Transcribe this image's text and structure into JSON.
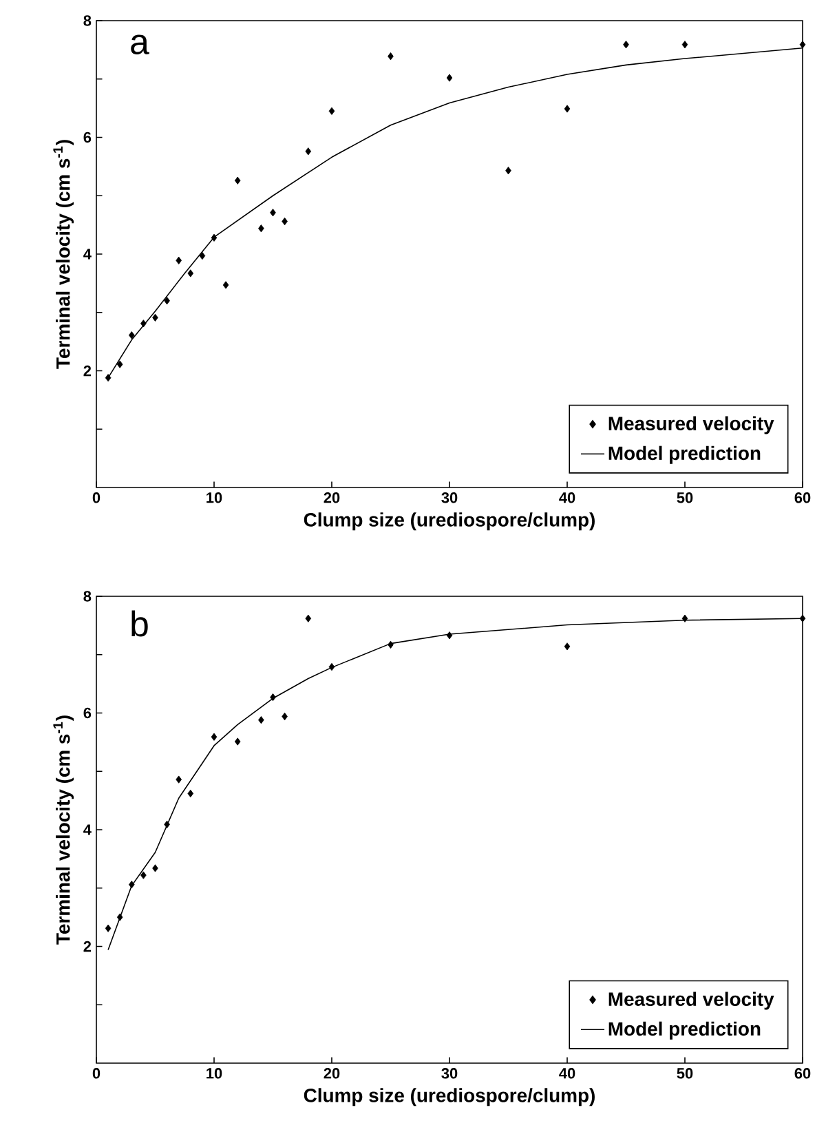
{
  "chart_data": [
    {
      "type": "scatter",
      "title": "a",
      "xlabel": "Clump size (urediospore/clump)",
      "ylabel": "Terminal velocity (cm s$^{-1}$)",
      "xlim": [
        0,
        60
      ],
      "ylim": [
        0,
        8
      ],
      "xticks": [
        0,
        10,
        20,
        30,
        40,
        50,
        60
      ],
      "yticks": [
        {
          "value": 1,
          "label": null
        },
        2,
        {
          "value": 3,
          "label": null
        },
        4,
        {
          "value": 5,
          "label": null
        },
        6,
        {
          "value": 7,
          "label": null
        },
        8
      ],
      "legend": "bottom right",
      "grid": false,
      "series": [
        {
          "name": "Measured velocity",
          "marker": "diamond",
          "color": "#000000",
          "x": [
            1,
            2,
            3,
            4,
            5,
            6,
            7,
            8,
            9,
            10,
            11,
            12,
            14,
            15,
            16,
            18,
            20,
            25,
            30,
            35,
            40,
            45,
            50,
            60
          ],
          "values": [
            1.88,
            2.11,
            2.61,
            2.81,
            2.91,
            3.2,
            3.89,
            3.67,
            3.97,
            4.28,
            3.47,
            5.26,
            4.44,
            4.71,
            4.56,
            5.76,
            6.45,
            7.39,
            7.02,
            5.43,
            6.49,
            7.59,
            7.59,
            7.59
          ]
        },
        {
          "name": "Model prediction",
          "type": "line",
          "marker": "none",
          "line_style": "solid",
          "color": "#000000",
          "x": [
            1,
            3,
            5,
            7.5,
            10,
            15,
            20,
            25,
            30,
            35,
            40,
            45,
            50,
            60
          ],
          "values": [
            1.88,
            2.53,
            3.02,
            3.67,
            4.29,
            5.0,
            5.66,
            6.21,
            6.59,
            6.86,
            7.08,
            7.24,
            7.35,
            7.53
          ]
        }
      ]
    },
    {
      "type": "scatter",
      "title": "b",
      "xlabel": "Clump size (urediospore/clump)",
      "ylabel": "Terminal velocity (cm s$^{-1}$)",
      "xlim": [
        0,
        60
      ],
      "ylim": [
        0,
        8
      ],
      "xticks": [
        0,
        10,
        20,
        30,
        40,
        50,
        60
      ],
      "yticks": [
        {
          "value": 1,
          "label": null
        },
        2,
        {
          "value": 3,
          "label": null
        },
        4,
        {
          "value": 5,
          "label": null
        },
        6,
        {
          "value": 7,
          "label": null
        },
        8
      ],
      "legend": "bottom right",
      "grid": false,
      "series": [
        {
          "name": "Measured velocity",
          "marker": "diamond",
          "color": "#000000",
          "x": [
            1,
            2,
            3,
            4,
            5,
            6,
            7,
            8,
            10,
            12,
            14,
            15,
            16,
            18,
            20,
            25,
            30,
            40,
            50,
            60
          ],
          "values": [
            2.31,
            2.5,
            3.06,
            3.22,
            3.34,
            4.09,
            4.86,
            4.62,
            5.59,
            5.51,
            5.88,
            6.27,
            5.94,
            7.62,
            6.79,
            7.17,
            7.33,
            7.14,
            7.62,
            7.62
          ]
        },
        {
          "name": "Model prediction",
          "type": "line",
          "marker": "none",
          "line_style": "solid",
          "color": "#000000",
          "x": [
            1,
            3,
            5,
            7,
            10,
            12,
            15,
            18,
            20,
            25,
            30,
            40,
            50,
            60
          ],
          "values": [
            1.94,
            3.04,
            3.61,
            4.54,
            5.44,
            5.8,
            6.25,
            6.59,
            6.78,
            7.19,
            7.35,
            7.51,
            7.59,
            7.62
          ]
        }
      ]
    }
  ]
}
